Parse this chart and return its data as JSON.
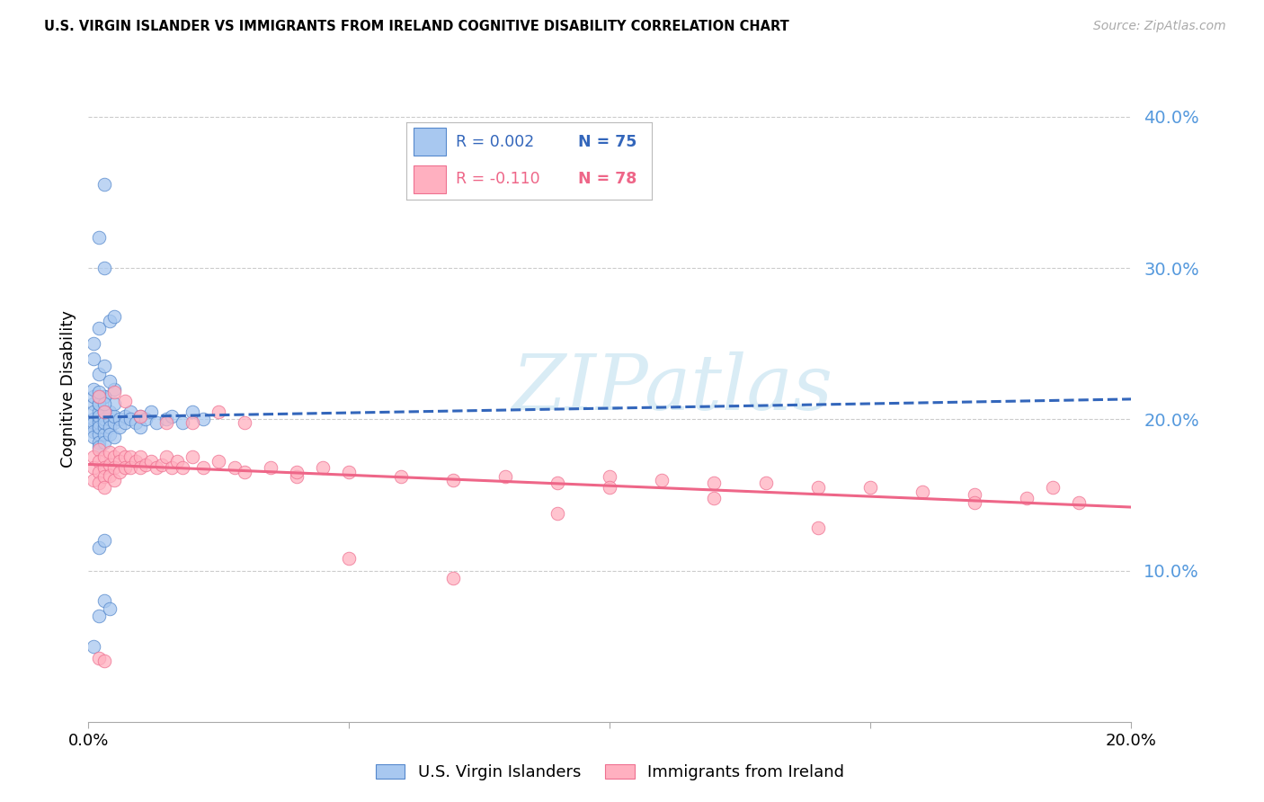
{
  "title": "U.S. VIRGIN ISLANDER VS IMMIGRANTS FROM IRELAND COGNITIVE DISABILITY CORRELATION CHART",
  "source": "Source: ZipAtlas.com",
  "ylabel": "Cognitive Disability",
  "right_ytick_vals": [
    0.1,
    0.2,
    0.3,
    0.4
  ],
  "right_ytick_labels": [
    "10.0%",
    "20.0%",
    "30.0%",
    "40.0%"
  ],
  "xlim": [
    0.0,
    0.2
  ],
  "ylim": [
    0.0,
    0.44
  ],
  "blue_R_text": "R = 0.002",
  "blue_N_text": "N = 75",
  "pink_R_text": "R = -0.110",
  "pink_N_text": "N = 78",
  "blue_scatter_color": "#A8C8F0",
  "blue_edge_color": "#5588CC",
  "pink_scatter_color": "#FFB0C0",
  "pink_edge_color": "#EE7090",
  "blue_line_color": "#3366BB",
  "pink_line_color": "#EE6688",
  "grid_color": "#CCCCCC",
  "watermark_text": "ZIPatlas",
  "watermark_color": "#BBDDEE",
  "legend_label_blue": "U.S. Virgin Islanders",
  "legend_label_pink": "Immigrants from Ireland",
  "blue_scatter_x": [
    0.001,
    0.001,
    0.001,
    0.001,
    0.001,
    0.001,
    0.001,
    0.001,
    0.002,
    0.002,
    0.002,
    0.002,
    0.002,
    0.002,
    0.002,
    0.002,
    0.002,
    0.002,
    0.003,
    0.003,
    0.003,
    0.003,
    0.003,
    0.003,
    0.003,
    0.004,
    0.004,
    0.004,
    0.004,
    0.005,
    0.005,
    0.005,
    0.005,
    0.006,
    0.006,
    0.007,
    0.007,
    0.008,
    0.008,
    0.009,
    0.01,
    0.01,
    0.011,
    0.012,
    0.013,
    0.015,
    0.016,
    0.018,
    0.02,
    0.022,
    0.001,
    0.002,
    0.002,
    0.003,
    0.003,
    0.004,
    0.005,
    0.001,
    0.002,
    0.003,
    0.004,
    0.002,
    0.003,
    0.001,
    0.002,
    0.003,
    0.005,
    0.003,
    0.004,
    0.002,
    0.003,
    0.001,
    0.002,
    0.003,
    0.002
  ],
  "blue_scatter_y": [
    0.195,
    0.2,
    0.21,
    0.215,
    0.205,
    0.198,
    0.192,
    0.188,
    0.2,
    0.205,
    0.195,
    0.19,
    0.198,
    0.21,
    0.185,
    0.182,
    0.202,
    0.195,
    0.205,
    0.195,
    0.19,
    0.2,
    0.185,
    0.215,
    0.198,
    0.2,
    0.195,
    0.205,
    0.19,
    0.198,
    0.202,
    0.188,
    0.21,
    0.2,
    0.195,
    0.202,
    0.198,
    0.205,
    0.2,
    0.198,
    0.202,
    0.195,
    0.2,
    0.205,
    0.198,
    0.2,
    0.202,
    0.198,
    0.205,
    0.2,
    0.25,
    0.26,
    0.32,
    0.355,
    0.3,
    0.265,
    0.268,
    0.05,
    0.07,
    0.08,
    0.075,
    0.115,
    0.12,
    0.24,
    0.23,
    0.235,
    0.22,
    0.215,
    0.225,
    0.21,
    0.205,
    0.22,
    0.215,
    0.21,
    0.218
  ],
  "pink_scatter_x": [
    0.001,
    0.001,
    0.001,
    0.002,
    0.002,
    0.002,
    0.002,
    0.003,
    0.003,
    0.003,
    0.003,
    0.004,
    0.004,
    0.004,
    0.005,
    0.005,
    0.005,
    0.006,
    0.006,
    0.006,
    0.007,
    0.007,
    0.008,
    0.008,
    0.009,
    0.01,
    0.01,
    0.011,
    0.012,
    0.013,
    0.014,
    0.015,
    0.016,
    0.017,
    0.018,
    0.02,
    0.022,
    0.025,
    0.028,
    0.03,
    0.035,
    0.04,
    0.045,
    0.05,
    0.06,
    0.07,
    0.08,
    0.09,
    0.1,
    0.11,
    0.12,
    0.13,
    0.14,
    0.15,
    0.16,
    0.17,
    0.18,
    0.19,
    0.002,
    0.003,
    0.005,
    0.007,
    0.01,
    0.015,
    0.02,
    0.025,
    0.03,
    0.04,
    0.05,
    0.07,
    0.09,
    0.1,
    0.12,
    0.14,
    0.17,
    0.185,
    0.002,
    0.003
  ],
  "pink_scatter_y": [
    0.175,
    0.168,
    0.16,
    0.18,
    0.172,
    0.165,
    0.158,
    0.175,
    0.168,
    0.162,
    0.155,
    0.178,
    0.17,
    0.163,
    0.175,
    0.168,
    0.16,
    0.178,
    0.172,
    0.165,
    0.175,
    0.168,
    0.175,
    0.168,
    0.172,
    0.175,
    0.168,
    0.17,
    0.172,
    0.168,
    0.17,
    0.175,
    0.168,
    0.172,
    0.168,
    0.175,
    0.168,
    0.172,
    0.168,
    0.165,
    0.168,
    0.162,
    0.168,
    0.165,
    0.162,
    0.16,
    0.162,
    0.158,
    0.162,
    0.16,
    0.158,
    0.158,
    0.155,
    0.155,
    0.152,
    0.15,
    0.148,
    0.145,
    0.215,
    0.205,
    0.218,
    0.212,
    0.202,
    0.198,
    0.198,
    0.205,
    0.198,
    0.165,
    0.108,
    0.095,
    0.138,
    0.155,
    0.148,
    0.128,
    0.145,
    0.155,
    0.042,
    0.04
  ]
}
